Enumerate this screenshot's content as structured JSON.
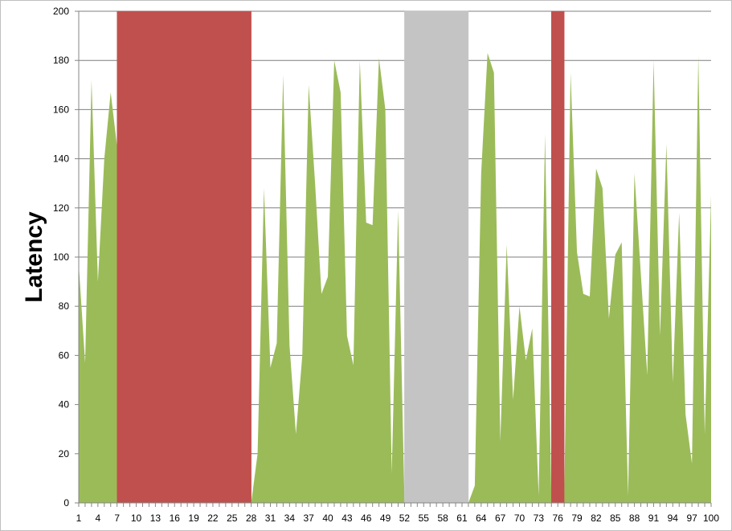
{
  "chart_data": {
    "type": "area",
    "ylabel": "Latency",
    "xlabel": "",
    "title": "",
    "ylim": [
      0,
      200
    ],
    "yticks": [
      0,
      20,
      40,
      60,
      80,
      100,
      120,
      140,
      160,
      180,
      200
    ],
    "xlim": [
      1,
      100
    ],
    "xticks": [
      1,
      4,
      7,
      10,
      13,
      16,
      19,
      22,
      25,
      28,
      31,
      34,
      37,
      40,
      43,
      46,
      49,
      52,
      55,
      58,
      61,
      64,
      67,
      70,
      73,
      76,
      79,
      82,
      85,
      88,
      91,
      94,
      97,
      100
    ],
    "grid": true,
    "legend": "none",
    "colors": {
      "latency": "#9bbb59",
      "failure": "#c0504d",
      "maintenance": "#c4c4c4",
      "grid": "#7f7f7f",
      "axis": "#868686"
    },
    "series": [
      {
        "values": [
          97,
          57,
          172,
          90,
          140,
          167,
          145,
          0,
          0,
          0,
          0,
          0,
          0,
          0,
          0,
          0,
          0,
          0,
          0,
          0,
          0,
          0,
          0,
          0,
          0,
          0,
          0,
          0,
          20,
          128,
          55,
          65,
          174,
          64,
          28,
          60,
          170,
          130,
          85,
          92,
          180,
          167,
          68,
          56,
          180,
          114,
          113,
          181,
          160,
          12,
          119,
          0,
          0,
          0,
          0,
          0,
          0,
          0,
          0,
          0,
          0,
          0,
          7,
          134,
          183,
          175,
          25,
          105,
          42,
          80,
          58,
          71,
          3,
          150,
          0,
          0,
          0,
          175,
          102,
          85,
          84,
          136,
          128,
          75,
          101,
          106,
          3,
          134,
          93,
          52,
          180,
          68,
          146,
          49,
          118,
          36,
          16,
          182,
          28,
          125
        ]
      }
    ],
    "bands": [
      {
        "kind": "failure",
        "from": 7,
        "to": 28,
        "value": 200
      },
      {
        "kind": "maintenance",
        "from": 52,
        "to": 62,
        "value": 200
      },
      {
        "kind": "failure",
        "from": 75,
        "to": 77,
        "value": 200
      }
    ]
  }
}
